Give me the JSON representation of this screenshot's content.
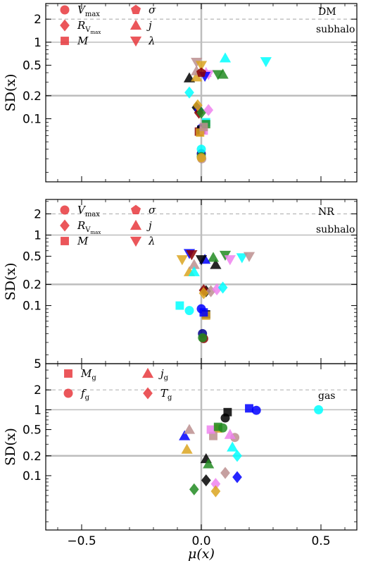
{
  "chart_data": [
    {
      "type": "scatter",
      "panel": "top",
      "xlabel": "",
      "ylabel": "SD(x)",
      "xlim": [
        -0.65,
        0.65
      ],
      "ylim": [
        0.015,
        3.2
      ],
      "yscale": "log",
      "xticks": [
        -0.5,
        0.0,
        0.5
      ],
      "xtick_labels": [
        "",
        "",
        ""
      ],
      "yticks": [
        0.1,
        0.2,
        0.5,
        1,
        2
      ],
      "ytick_labels": [
        "0.1",
        "0.2",
        "0.5",
        "1",
        "2"
      ],
      "guide_lines": {
        "solid_y": [
          1,
          0.2
        ],
        "dashed_y": [
          2
        ],
        "solid_x": [
          0
        ]
      },
      "annotations": [
        "DM",
        "subhalo"
      ],
      "legend": [
        {
          "label": "V",
          "sub": "max",
          "marker": "circle"
        },
        {
          "label": "R",
          "sub": "V",
          "subsub": "max",
          "marker": "diamond"
        },
        {
          "label": "M",
          "sub": "",
          "marker": "square"
        },
        {
          "label": "σ",
          "sub": "",
          "marker": "pentagon"
        },
        {
          "label": "j",
          "sub": "",
          "marker": "triangle-up"
        },
        {
          "label": "λ",
          "sub": "",
          "marker": "triangle-down"
        }
      ],
      "points": [
        {
          "m": "circle",
          "c": "#00008b",
          "x": 0.0,
          "y": 0.035
        },
        {
          "m": "circle",
          "c": "#0000ff",
          "x": 0.0,
          "y": 0.075
        },
        {
          "m": "circle",
          "c": "#00ffff",
          "x": 0.0,
          "y": 0.04
        },
        {
          "m": "circle",
          "c": "#228b22",
          "x": 0.0,
          "y": 0.032
        },
        {
          "m": "circle",
          "c": "#bc8f8f",
          "x": 0.002,
          "y": 0.03
        },
        {
          "m": "circle",
          "c": "#daa520",
          "x": 0.0,
          "y": 0.031
        },
        {
          "m": "square",
          "c": "#8b0000",
          "x": -0.01,
          "y": 0.068
        },
        {
          "m": "square",
          "c": "#000000",
          "x": 0.0,
          "y": 0.072
        },
        {
          "m": "square",
          "c": "#ee82ee",
          "x": 0.01,
          "y": 0.07
        },
        {
          "m": "square",
          "c": "#daa520",
          "x": -0.005,
          "y": 0.066
        },
        {
          "m": "square",
          "c": "#00ffff",
          "x": 0.02,
          "y": 0.09
        },
        {
          "m": "square",
          "c": "#228b22",
          "x": 0.02,
          "y": 0.085
        },
        {
          "m": "square",
          "c": "#bc8f8f",
          "x": 0.01,
          "y": 0.078
        },
        {
          "m": "diamond",
          "c": "#000000",
          "x": -0.02,
          "y": 0.14
        },
        {
          "m": "diamond",
          "c": "#0000ff",
          "x": -0.01,
          "y": 0.13
        },
        {
          "m": "diamond",
          "c": "#8b0000",
          "x": -0.01,
          "y": 0.12
        },
        {
          "m": "diamond",
          "c": "#228b22",
          "x": 0.0,
          "y": 0.12
        },
        {
          "m": "diamond",
          "c": "#ee82ee",
          "x": 0.03,
          "y": 0.13
        },
        {
          "m": "diamond",
          "c": "#daa520",
          "x": -0.015,
          "y": 0.15
        },
        {
          "m": "diamond",
          "c": "#00ffff",
          "x": -0.05,
          "y": 0.22
        },
        {
          "m": "triangle-up",
          "c": "#000000",
          "x": -0.05,
          "y": 0.34
        },
        {
          "m": "triangle-up",
          "c": "#00ffff",
          "x": 0.1,
          "y": 0.62
        },
        {
          "m": "triangle-up",
          "c": "#228b22",
          "x": 0.09,
          "y": 0.38
        },
        {
          "m": "triangle-up",
          "c": "#ee82ee",
          "x": 0.02,
          "y": 0.4
        },
        {
          "m": "triangle-up",
          "c": "#daa520",
          "x": -0.02,
          "y": 0.35
        },
        {
          "m": "triangle-up",
          "c": "#bc8f8f",
          "x": -0.02,
          "y": 0.42
        },
        {
          "m": "triangle-down",
          "c": "#00ffff",
          "x": 0.27,
          "y": 0.56
        },
        {
          "m": "triangle-down",
          "c": "#bc8f8f",
          "x": -0.02,
          "y": 0.55
        },
        {
          "m": "triangle-down",
          "c": "#ee82ee",
          "x": 0.03,
          "y": 0.38
        },
        {
          "m": "triangle-down",
          "c": "#228b22",
          "x": 0.07,
          "y": 0.38
        },
        {
          "m": "triangle-down",
          "c": "#0000ff",
          "x": 0.015,
          "y": 0.36
        },
        {
          "m": "triangle-down",
          "c": "#daa520",
          "x": 0.0,
          "y": 0.5
        },
        {
          "m": "pentagon",
          "c": "#8b0000",
          "x": 0.0,
          "y": 0.4
        }
      ]
    },
    {
      "type": "scatter",
      "panel": "middle",
      "xlabel": "",
      "ylabel": "SD(x)",
      "xlim": [
        -0.65,
        0.65
      ],
      "ylim": [
        0.015,
        3.2
      ],
      "yscale": "log",
      "xticks": [
        -0.5,
        0.0,
        0.5
      ],
      "xtick_labels": [
        "",
        "",
        ""
      ],
      "yticks": [
        0.1,
        0.2,
        0.5,
        1,
        2
      ],
      "ytick_labels": [
        "0.1",
        "0.2",
        "0.5",
        "1",
        "2"
      ],
      "guide_lines": {
        "solid_y": [
          1,
          0.2
        ],
        "dashed_y": [
          2
        ],
        "solid_x": [
          0
        ]
      },
      "annotations": [
        "NR",
        "subhalo"
      ],
      "legend": [
        {
          "label": "V",
          "sub": "max",
          "marker": "circle"
        },
        {
          "label": "R",
          "sub": "V",
          "subsub": "max",
          "marker": "diamond"
        },
        {
          "label": "M",
          "sub": "",
          "marker": "square"
        },
        {
          "label": "σ",
          "sub": "",
          "marker": "pentagon"
        },
        {
          "label": "j",
          "sub": "",
          "marker": "triangle-up"
        },
        {
          "label": "λ",
          "sub": "",
          "marker": "triangle-down"
        }
      ],
      "points": [
        {
          "m": "circle",
          "c": "#0000ff",
          "x": 0.0,
          "y": 0.09
        },
        {
          "m": "circle",
          "c": "#00ffff",
          "x": -0.05,
          "y": 0.085
        },
        {
          "m": "circle",
          "c": "#00008b",
          "x": 0.005,
          "y": 0.04
        },
        {
          "m": "circle",
          "c": "#8b0000",
          "x": 0.01,
          "y": 0.034
        },
        {
          "m": "circle",
          "c": "#228b22",
          "x": 0.005,
          "y": 0.035
        },
        {
          "m": "square",
          "c": "#00ffff",
          "x": -0.09,
          "y": 0.1
        },
        {
          "m": "square",
          "c": "#000000",
          "x": 0.02,
          "y": 0.075
        },
        {
          "m": "square",
          "c": "#daa520",
          "x": 0.02,
          "y": 0.072
        },
        {
          "m": "square",
          "c": "#0000ff",
          "x": 0.01,
          "y": 0.08
        },
        {
          "m": "diamond",
          "c": "#000000",
          "x": 0.02,
          "y": 0.16
        },
        {
          "m": "diamond",
          "c": "#8b0000",
          "x": 0.01,
          "y": 0.165
        },
        {
          "m": "diamond",
          "c": "#bc8f8f",
          "x": 0.04,
          "y": 0.16
        },
        {
          "m": "diamond",
          "c": "#ee82ee",
          "x": 0.065,
          "y": 0.17
        },
        {
          "m": "diamond",
          "c": "#00ffff",
          "x": 0.09,
          "y": 0.18
        },
        {
          "m": "diamond",
          "c": "#daa520",
          "x": 0.01,
          "y": 0.15
        },
        {
          "m": "triangle-up",
          "c": "#daa520",
          "x": -0.05,
          "y": 0.3
        },
        {
          "m": "triangle-up",
          "c": "#bc8f8f",
          "x": -0.03,
          "y": 0.38
        },
        {
          "m": "triangle-up",
          "c": "#00ffff",
          "x": -0.03,
          "y": 0.3
        },
        {
          "m": "triangle-up",
          "c": "#000000",
          "x": 0.06,
          "y": 0.38
        },
        {
          "m": "triangle-up",
          "c": "#228b22",
          "x": 0.05,
          "y": 0.48
        },
        {
          "m": "triangle-up",
          "c": "#0000ff",
          "x": 0.015,
          "y": 0.45
        },
        {
          "m": "triangle-down",
          "c": "#daa520",
          "x": -0.08,
          "y": 0.45
        },
        {
          "m": "triangle-down",
          "c": "#0000ff",
          "x": -0.05,
          "y": 0.55
        },
        {
          "m": "triangle-down",
          "c": "#8b0000",
          "x": -0.04,
          "y": 0.53
        },
        {
          "m": "triangle-down",
          "c": "#228b22",
          "x": 0.1,
          "y": 0.52
        },
        {
          "m": "triangle-down",
          "c": "#ee82ee",
          "x": 0.12,
          "y": 0.45
        },
        {
          "m": "triangle-down",
          "c": "#00ffff",
          "x": 0.17,
          "y": 0.48
        },
        {
          "m": "triangle-down",
          "c": "#bc8f8f",
          "x": 0.2,
          "y": 0.5
        },
        {
          "m": "triangle-down",
          "c": "#000000",
          "x": 0.0,
          "y": 0.45
        }
      ]
    },
    {
      "type": "scatter",
      "panel": "bottom",
      "xlabel": "μ(x)",
      "ylabel": "SD(x)",
      "xlim": [
        -0.65,
        0.65
      ],
      "ylim": [
        0.015,
        5
      ],
      "yscale": "log",
      "xticks": [
        -0.5,
        0.0,
        0.5
      ],
      "xtick_labels": [
        "−0.5",
        "0.0",
        "0.5"
      ],
      "yticks": [
        0.1,
        0.2,
        0.5,
        1,
        2,
        5
      ],
      "ytick_labels": [
        "0.1",
        "0.2",
        "0.5",
        "1",
        "2",
        "5"
      ],
      "guide_lines": {
        "solid_y": [
          1,
          0.2
        ],
        "dashed_y": [
          2
        ],
        "solid_x": [
          0
        ]
      },
      "annotations": [
        "gas"
      ],
      "legend": [
        {
          "label": "M",
          "sub": "g",
          "marker": "square"
        },
        {
          "label": "f",
          "sub": "g",
          "marker": "circle"
        },
        {
          "label": "j",
          "sub": "g",
          "marker": "triangle-up"
        },
        {
          "label": "T",
          "sub": "g",
          "marker": "diamond"
        }
      ],
      "points": [
        {
          "m": "square",
          "c": "#000000",
          "x": 0.11,
          "y": 0.92
        },
        {
          "m": "square",
          "c": "#0000ff",
          "x": 0.2,
          "y": 1.05
        },
        {
          "m": "square",
          "c": "#daa520",
          "x": 0.07,
          "y": 0.52
        },
        {
          "m": "square",
          "c": "#bc8f8f",
          "x": 0.05,
          "y": 0.4
        },
        {
          "m": "square",
          "c": "#ee82ee",
          "x": 0.04,
          "y": 0.5
        },
        {
          "m": "square",
          "c": "#228b22",
          "x": 0.07,
          "y": 0.55
        },
        {
          "m": "circle",
          "c": "#0000ff",
          "x": 0.23,
          "y": 0.98
        },
        {
          "m": "circle",
          "c": "#00ffff",
          "x": 0.49,
          "y": 1.0
        },
        {
          "m": "circle",
          "c": "#000000",
          "x": 0.1,
          "y": 0.75
        },
        {
          "m": "circle",
          "c": "#bc8f8f",
          "x": 0.14,
          "y": 0.38
        },
        {
          "m": "circle",
          "c": "#228b22",
          "x": 0.09,
          "y": 0.53
        },
        {
          "m": "triangle-up",
          "c": "#0000ff",
          "x": -0.07,
          "y": 0.4
        },
        {
          "m": "triangle-up",
          "c": "#bc8f8f",
          "x": -0.05,
          "y": 0.5
        },
        {
          "m": "triangle-up",
          "c": "#daa520",
          "x": -0.06,
          "y": 0.25
        },
        {
          "m": "triangle-up",
          "c": "#000000",
          "x": 0.02,
          "y": 0.18
        },
        {
          "m": "triangle-up",
          "c": "#228b22",
          "x": 0.03,
          "y": 0.15
        },
        {
          "m": "triangle-up",
          "c": "#00ffff",
          "x": 0.13,
          "y": 0.27
        },
        {
          "m": "triangle-up",
          "c": "#ee82ee",
          "x": 0.12,
          "y": 0.42
        },
        {
          "m": "diamond",
          "c": "#00ffff",
          "x": 0.15,
          "y": 0.2
        },
        {
          "m": "diamond",
          "c": "#bc8f8f",
          "x": 0.1,
          "y": 0.11
        },
        {
          "m": "diamond",
          "c": "#0000ff",
          "x": 0.15,
          "y": 0.095
        },
        {
          "m": "diamond",
          "c": "#000000",
          "x": 0.02,
          "y": 0.085
        },
        {
          "m": "diamond",
          "c": "#ee82ee",
          "x": 0.06,
          "y": 0.075
        },
        {
          "m": "diamond",
          "c": "#228b22",
          "x": -0.03,
          "y": 0.062
        },
        {
          "m": "diamond",
          "c": "#daa520",
          "x": 0.06,
          "y": 0.058
        }
      ]
    }
  ]
}
